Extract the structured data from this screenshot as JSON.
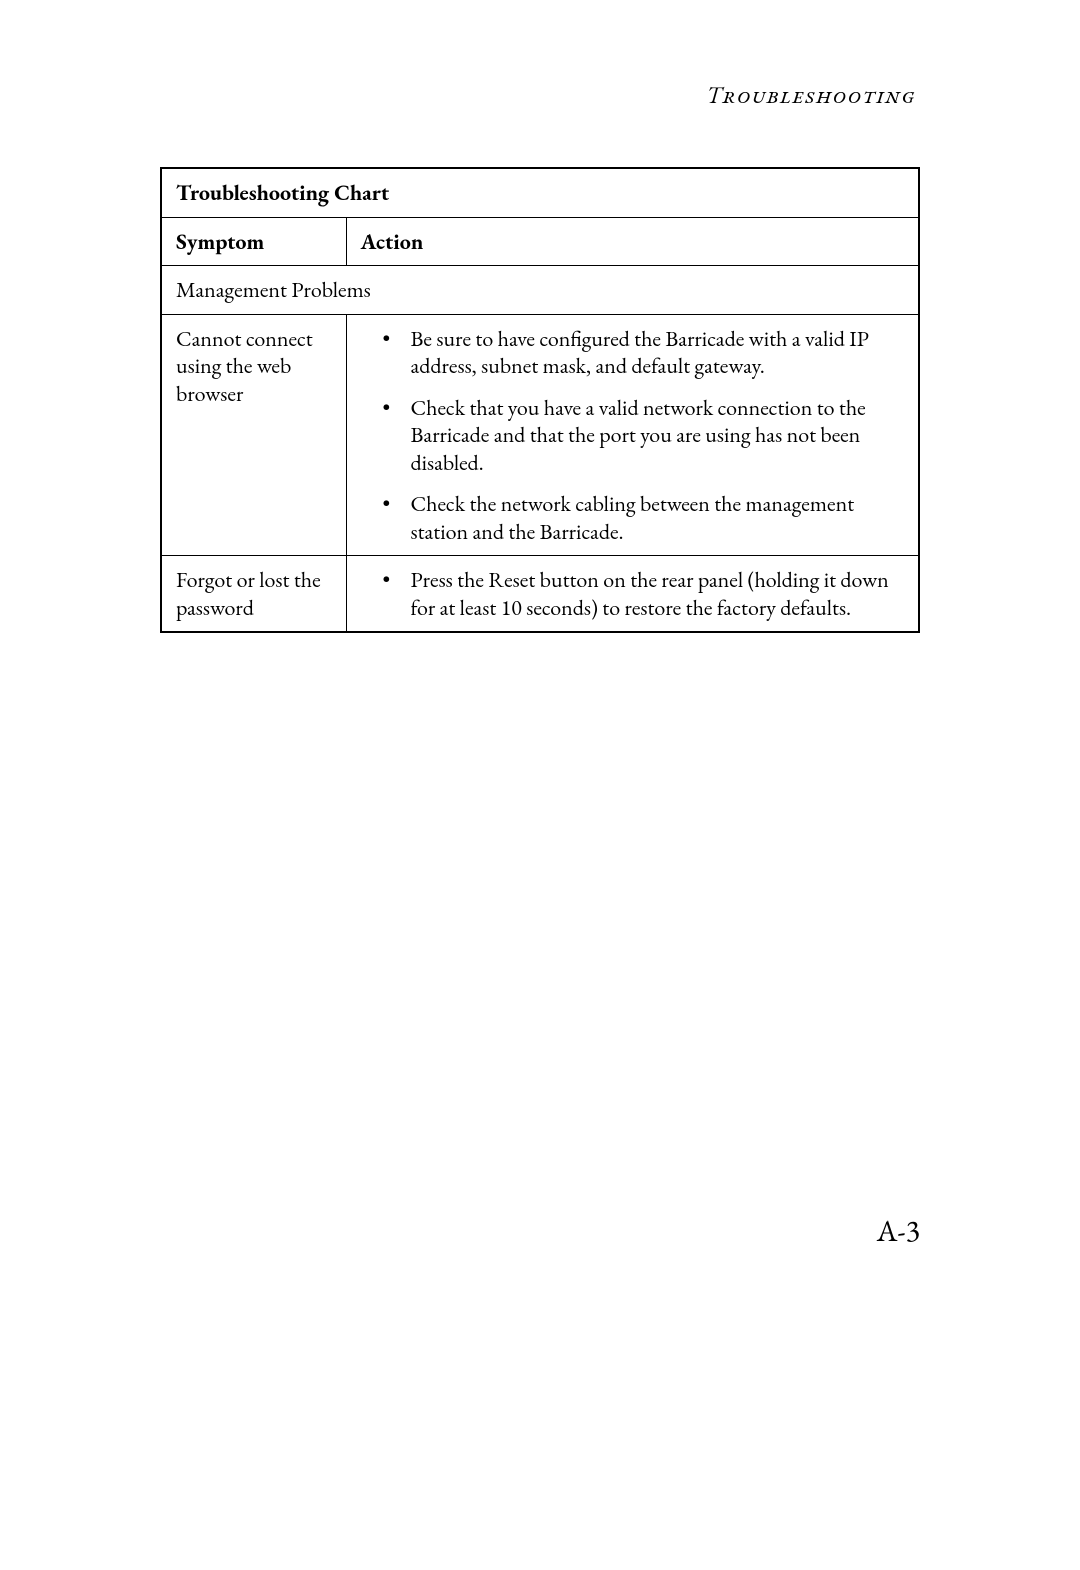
{
  "header": "Troubleshooting",
  "table": {
    "title": "Troubleshooting Chart",
    "col_symptom": "Symptom",
    "col_action": "Action",
    "section": "Management Problems",
    "rows": [
      {
        "symptom": "Cannot connect using the web browser",
        "actions": [
          "Be sure to have configured the Barricade with a valid IP address, subnet mask, and default gateway.",
          "Check that you have a valid network connection to the Barricade and that the port you are using has not been disabled.",
          "Check the network cabling between the management station and the Barricade."
        ]
      },
      {
        "symptom": "Forgot or lost the password",
        "actions": [
          "Press the Reset button on the rear panel (holding it down for at least 10 seconds) to restore the factory defaults."
        ]
      }
    ]
  },
  "page_number": "A-3"
}
